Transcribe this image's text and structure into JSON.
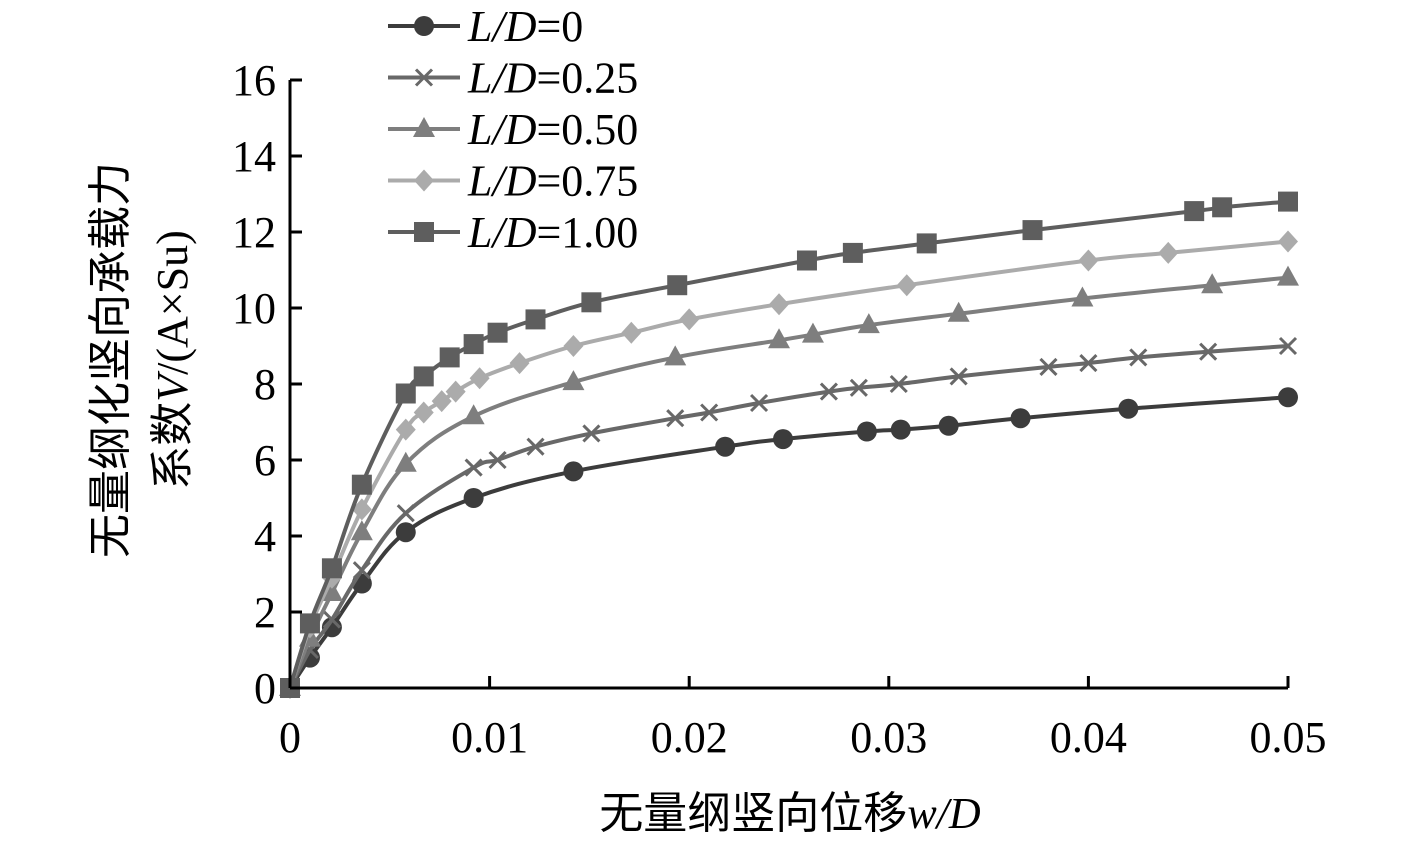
{
  "chart_data": {
    "type": "line",
    "xlabel_prefix": "无量纲竖向位移",
    "xlabel_var": "w/D",
    "ylabel_line1": "无量纲化竖向承载力",
    "ylabel_line2_prefix": "系数",
    "ylabel_line2_var": "V",
    "ylabel_line2_suffix": "/(A×Su)",
    "xlim": [
      0,
      0.05
    ],
    "ylim": [
      0,
      16
    ],
    "xticks": [
      "0",
      "0.01",
      "0.02",
      "0.03",
      "0.04",
      "0.05"
    ],
    "yticks": [
      "0",
      "2",
      "4",
      "6",
      "8",
      "10",
      "12",
      "14",
      "16"
    ],
    "legend_position": "top-left",
    "series": [
      {
        "name_var": "L/D",
        "name_value": "=0",
        "marker": "circle",
        "color": "#3c3c3c",
        "points": [
          [
            0,
            0
          ],
          [
            0.001,
            0.8
          ],
          [
            0.0021,
            1.6
          ],
          [
            0.0036,
            2.75
          ],
          [
            0.0058,
            4.1
          ],
          [
            0.0092,
            5.0
          ],
          [
            0.0142,
            5.7
          ],
          [
            0.0218,
            6.35
          ],
          [
            0.0247,
            6.55
          ],
          [
            0.0289,
            6.75
          ],
          [
            0.0306,
            6.8
          ],
          [
            0.033,
            6.9
          ],
          [
            0.0366,
            7.1
          ],
          [
            0.042,
            7.35
          ],
          [
            0.05,
            7.65
          ]
        ]
      },
      {
        "name_var": "L/D",
        "name_value": "=0.25",
        "marker": "x",
        "color": "#686868",
        "points": [
          [
            0,
            0
          ],
          [
            0.001,
            1.0
          ],
          [
            0.0021,
            1.8
          ],
          [
            0.0036,
            3.1
          ],
          [
            0.0058,
            4.6
          ],
          [
            0.0092,
            5.8
          ],
          [
            0.0104,
            6.0
          ],
          [
            0.0123,
            6.35
          ],
          [
            0.0151,
            6.7
          ],
          [
            0.0193,
            7.1
          ],
          [
            0.021,
            7.25
          ],
          [
            0.0235,
            7.5
          ],
          [
            0.027,
            7.8
          ],
          [
            0.0285,
            7.9
          ],
          [
            0.0305,
            8.0
          ],
          [
            0.0335,
            8.2
          ],
          [
            0.038,
            8.45
          ],
          [
            0.04,
            8.55
          ],
          [
            0.0425,
            8.7
          ],
          [
            0.046,
            8.85
          ],
          [
            0.05,
            9.0
          ]
        ]
      },
      {
        "name_var": "L/D",
        "name_value": "=0.50",
        "marker": "triangle",
        "color": "#7e7e7e",
        "points": [
          [
            0,
            0
          ],
          [
            0.001,
            1.3
          ],
          [
            0.0021,
            2.5
          ],
          [
            0.0036,
            4.1
          ],
          [
            0.0058,
            5.9
          ],
          [
            0.0092,
            7.15
          ],
          [
            0.0142,
            8.05
          ],
          [
            0.0193,
            8.7
          ],
          [
            0.0245,
            9.15
          ],
          [
            0.0262,
            9.3
          ],
          [
            0.029,
            9.55
          ],
          [
            0.0335,
            9.85
          ],
          [
            0.0397,
            10.25
          ],
          [
            0.0462,
            10.6
          ],
          [
            0.05,
            10.8
          ]
        ]
      },
      {
        "name_var": "L/D",
        "name_value": "=0.75",
        "marker": "diamond",
        "color": "#ababab",
        "points": [
          [
            0,
            0
          ],
          [
            0.001,
            1.6
          ],
          [
            0.0021,
            2.9
          ],
          [
            0.0036,
            4.7
          ],
          [
            0.0058,
            6.8
          ],
          [
            0.0067,
            7.25
          ],
          [
            0.0076,
            7.55
          ],
          [
            0.0083,
            7.8
          ],
          [
            0.0095,
            8.15
          ],
          [
            0.0115,
            8.55
          ],
          [
            0.0142,
            9.0
          ],
          [
            0.0171,
            9.35
          ],
          [
            0.02,
            9.7
          ],
          [
            0.0245,
            10.1
          ],
          [
            0.0309,
            10.6
          ],
          [
            0.04,
            11.25
          ],
          [
            0.044,
            11.45
          ],
          [
            0.05,
            11.75
          ]
        ]
      },
      {
        "name_var": "L/D",
        "name_value": "=1.00",
        "marker": "square",
        "color": "#5e5e5e",
        "points": [
          [
            0,
            0
          ],
          [
            0.001,
            1.7
          ],
          [
            0.0021,
            3.15
          ],
          [
            0.0036,
            5.35
          ],
          [
            0.0058,
            7.75
          ],
          [
            0.0067,
            8.2
          ],
          [
            0.008,
            8.7
          ],
          [
            0.0092,
            9.05
          ],
          [
            0.0104,
            9.35
          ],
          [
            0.0123,
            9.7
          ],
          [
            0.0151,
            10.15
          ],
          [
            0.0194,
            10.6
          ],
          [
            0.0259,
            11.25
          ],
          [
            0.0282,
            11.45
          ],
          [
            0.0319,
            11.7
          ],
          [
            0.0372,
            12.05
          ],
          [
            0.0453,
            12.55
          ],
          [
            0.0467,
            12.65
          ],
          [
            0.05,
            12.8
          ]
        ]
      }
    ]
  }
}
